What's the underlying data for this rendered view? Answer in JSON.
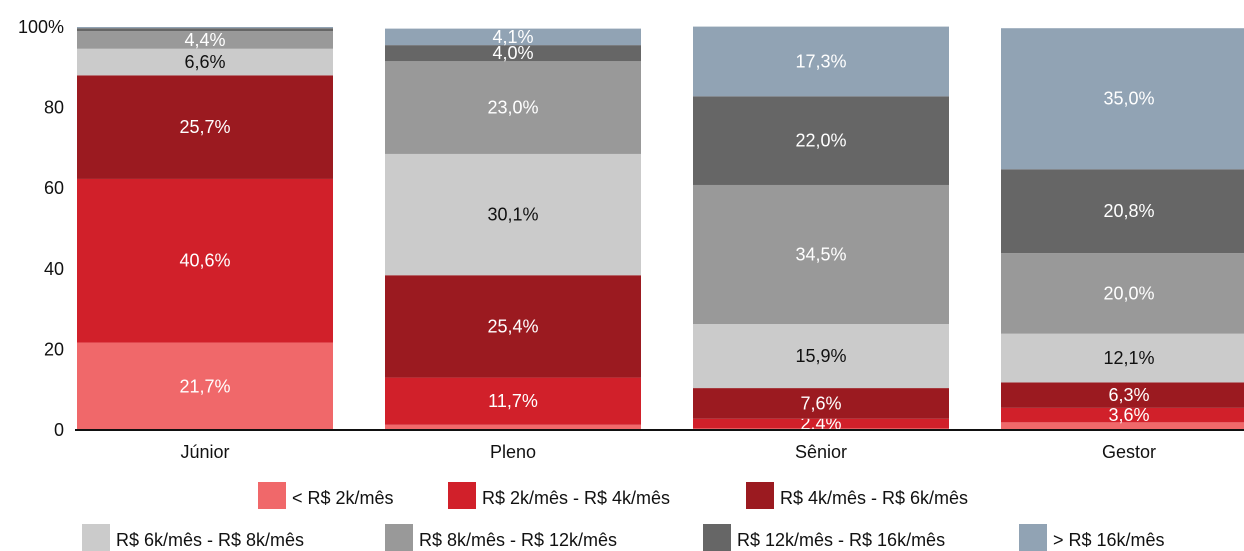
{
  "chart_data": {
    "type": "bar",
    "stacked": true,
    "categories": [
      "Júnior",
      "Pleno",
      "Sênior",
      "Gestor"
    ],
    "ylim": [
      0,
      100
    ],
    "yticks": [
      "0",
      "20",
      "40",
      "60",
      "80",
      "100%"
    ],
    "ytick_values": [
      0,
      20,
      40,
      60,
      80,
      100
    ],
    "grid": false,
    "legend_position": "bottom",
    "series": [
      {
        "name": "< R$ 2k/mês",
        "color": "#f0686a",
        "label_color": "#ffffff",
        "values": [
          21.7,
          1.3,
          0.4,
          1.9
        ],
        "labels": [
          "21,7%",
          "",
          "",
          ""
        ]
      },
      {
        "name": "R$ 2k/mês - R$ 4k/mês",
        "color": "#d1202a",
        "label_color": "#ffffff",
        "values": [
          40.6,
          11.7,
          2.4,
          3.6
        ],
        "labels": [
          "40,6%",
          "11,7%",
          "2,4%",
          "3,6%"
        ]
      },
      {
        "name": "R$ 4k/mês - R$ 6k/mês",
        "color": "#9b1a20",
        "label_color": "#ffffff",
        "values": [
          25.7,
          25.4,
          7.6,
          6.3
        ],
        "labels": [
          "25,7%",
          "25,4%",
          "7,6%",
          "6,3%"
        ]
      },
      {
        "name": "R$ 6k/mês - R$ 8k/mês",
        "color": "#cbcbcb",
        "label_color": "#111111",
        "values": [
          6.6,
          30.1,
          15.9,
          12.1
        ],
        "labels": [
          "6,6%",
          "30,1%",
          "15,9%",
          "12,1%"
        ]
      },
      {
        "name": "R$ 8k/mês - R$ 12k/mês",
        "color": "#999999",
        "label_color": "#ffffff",
        "values": [
          4.4,
          23.0,
          34.5,
          20.0
        ],
        "labels": [
          "4,4%",
          "23,0%",
          "34,5%",
          "20,0%"
        ]
      },
      {
        "name": "R$ 12k/mês - R$ 16k/mês",
        "color": "#666666",
        "label_color": "#ffffff",
        "values": [
          0.7,
          4.0,
          22.0,
          20.8
        ],
        "labels": [
          "",
          "4,0%",
          "22,0%",
          "20,8%"
        ]
      },
      {
        "name": "> R$ 16k/mês",
        "color": "#91a3b4",
        "label_color": "#ffffff",
        "values": [
          0.3,
          4.1,
          17.3,
          35.0
        ],
        "labels": [
          "",
          "4,1%",
          "17,3%",
          "35,0%"
        ]
      }
    ]
  }
}
